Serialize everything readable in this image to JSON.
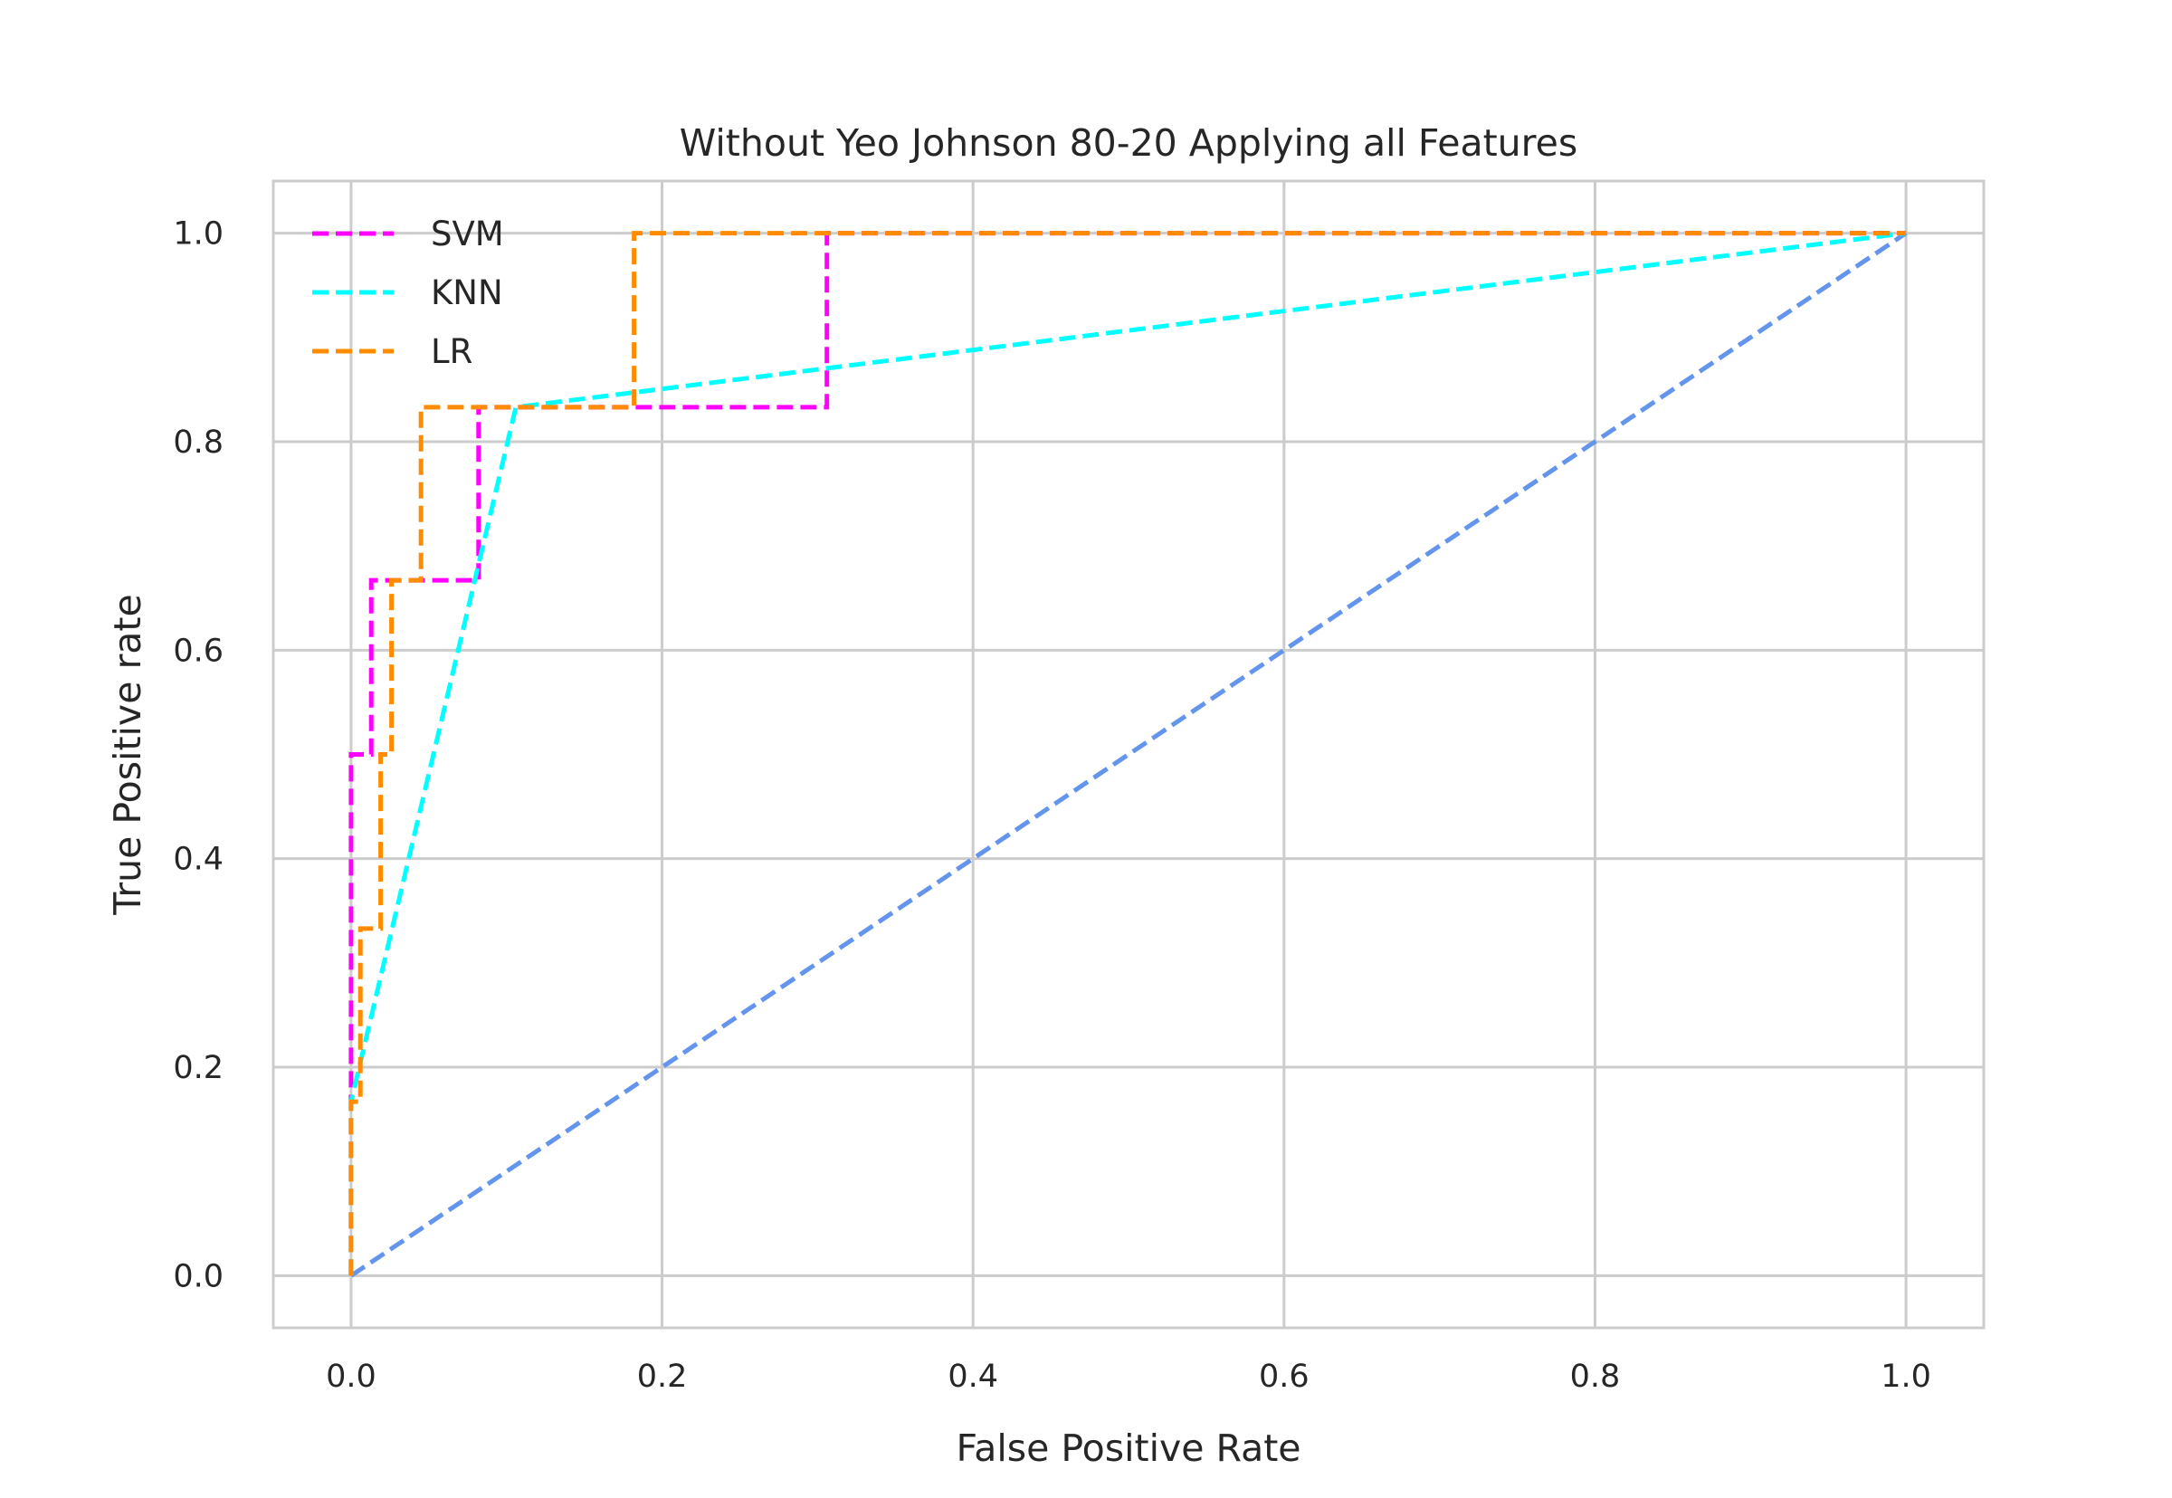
{
  "chart_data": {
    "type": "line",
    "title": "Without Yeo Johnson 80-20 Applying all Features",
    "xlabel": "False Positive Rate",
    "ylabel": "True Positive rate",
    "xlim": [
      -0.05,
      1.05
    ],
    "ylim": [
      -0.05,
      1.05
    ],
    "xticks": [
      0.0,
      0.2,
      0.4,
      0.6,
      0.8,
      1.0
    ],
    "xtick_labels": [
      "0.0",
      "0.2",
      "0.4",
      "0.6",
      "0.8",
      "1.0"
    ],
    "yticks": [
      0.0,
      0.2,
      0.4,
      0.6,
      0.8,
      1.0
    ],
    "ytick_labels": [
      "0.0",
      "0.2",
      "0.4",
      "0.6",
      "0.8",
      "1.0"
    ],
    "grid": true,
    "legend_position": "top-left",
    "series": [
      {
        "name": "SVM",
        "color": "#ff00ff",
        "x": [
          0.0,
          0.0,
          0.0,
          0.013,
          0.013,
          0.082,
          0.082,
          0.306,
          0.306,
          1.0
        ],
        "y": [
          0.0,
          0.167,
          0.5,
          0.5,
          0.667,
          0.667,
          0.833,
          0.833,
          1.0,
          1.0
        ]
      },
      {
        "name": "KNN",
        "color": "#00ffff",
        "x": [
          0.0,
          0.0,
          0.106,
          1.0
        ],
        "y": [
          0.0,
          0.167,
          0.833,
          1.0
        ]
      },
      {
        "name": "LR",
        "color": "#ff8c00",
        "x": [
          0.0,
          0.0,
          0.006,
          0.006,
          0.019,
          0.019,
          0.026,
          0.026,
          0.045,
          0.045,
          0.182,
          0.182,
          1.0
        ],
        "y": [
          0.0,
          0.167,
          0.167,
          0.333,
          0.333,
          0.5,
          0.5,
          0.667,
          0.667,
          0.833,
          0.833,
          1.0,
          1.0
        ]
      },
      {
        "color": "#6495ed",
        "x": [
          0.0,
          1.0
        ],
        "y": [
          0.0,
          1.0
        ]
      }
    ]
  }
}
